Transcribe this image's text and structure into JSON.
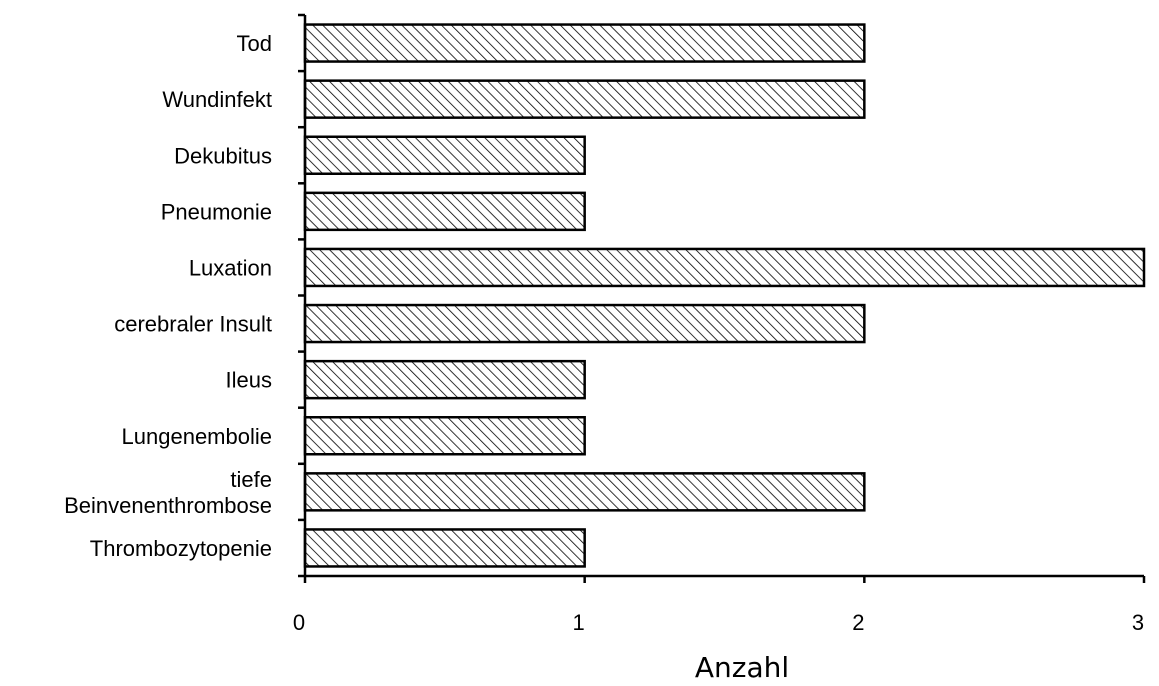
{
  "chart_data": {
    "type": "bar",
    "orientation": "horizontal",
    "categories": [
      "Tod",
      "Wundinfekt",
      "Dekubitus",
      "Pneumonie",
      "Luxation",
      "cerebraler Insult",
      "Ileus",
      "Lungenembolie",
      "tiefe Beinvenenthrombose",
      "Thrombozytopenie"
    ],
    "category_lines": [
      [
        "Tod"
      ],
      [
        "Wundinfekt"
      ],
      [
        "Dekubitus"
      ],
      [
        "Pneumonie"
      ],
      [
        "Luxation"
      ],
      [
        "cerebraler Insult"
      ],
      [
        "Ileus"
      ],
      [
        "Lungenembolie"
      ],
      [
        "tiefe",
        "Beinvenenthrombose"
      ],
      [
        "Thrombozytopenie"
      ]
    ],
    "values": [
      2,
      2,
      1,
      1,
      3,
      2,
      1,
      1,
      2,
      1
    ],
    "xlabel": "Anzahl",
    "ylabel": "",
    "title": "",
    "xlim": [
      0,
      3
    ],
    "xticks": [
      "0",
      "1",
      "2",
      "3"
    ],
    "grid": false,
    "legend": "none",
    "bar_fill": "diagonal hatch",
    "bar_color": "#000000"
  }
}
